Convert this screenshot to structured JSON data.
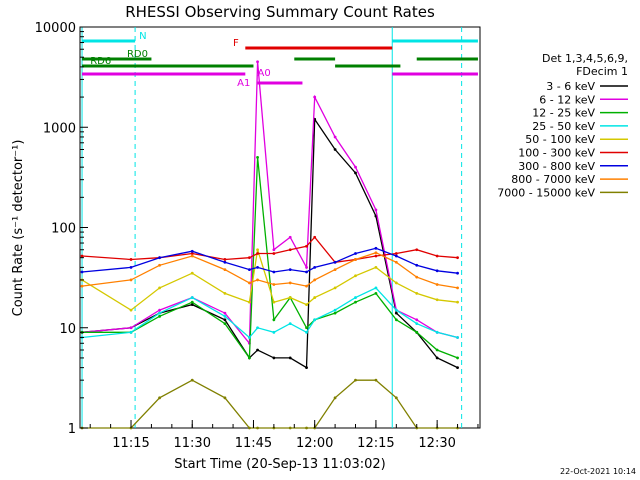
{
  "chart_data": {
    "type": "line",
    "title": "RHESSI Observing Summary Count Rates",
    "xlabel": "Start Time (20-Sep-13 11:03:02)",
    "ylabel": "Count Rate (s⁻¹ detector⁻¹)",
    "yscale": "log",
    "ylim": [
      1,
      10000
    ],
    "xlim_minutes": [
      11.05,
      12.7
    ],
    "x_ticks": [
      "11:15",
      "11:30",
      "11:45",
      "12:00",
      "12:15",
      "12:30"
    ],
    "y_ticks": [
      "1",
      "10",
      "100",
      "1000",
      "10000"
    ],
    "legend_header": [
      "Det 1,3,4,5,6,9,",
      "FDecim 1"
    ],
    "legend_position": "right",
    "timestamp": "22-Oct-2021 10:14",
    "attenuator_labels": {
      "A1": "A1",
      "A0": "A0"
    },
    "mode_bars": [
      {
        "label": "N",
        "color": "#00e5e5"
      },
      {
        "label": "F",
        "color": "#e00000"
      },
      {
        "label": "RD0",
        "color": "#008000"
      },
      {
        "label": "RD6",
        "color": "#008000"
      },
      {
        "label": "",
        "color": "#e000e0"
      }
    ],
    "series": [
      {
        "name": "3 - 6 keV",
        "color": "#000000",
        "x": [
          "11:03",
          "11:15",
          "11:22",
          "11:30",
          "11:38",
          "11:44",
          "11:46",
          "11:50",
          "11:54",
          "11:58",
          "12:00",
          "12:05",
          "12:10",
          "12:15",
          "12:20",
          "12:25",
          "12:30",
          "12:35"
        ],
        "values": [
          9,
          10,
          14,
          17,
          12,
          5,
          6,
          5,
          5,
          4,
          1200,
          600,
          350,
          130,
          14,
          9,
          5,
          4
        ]
      },
      {
        "name": "6 - 12 keV",
        "color": "#e000e0",
        "x": [
          "11:03",
          "11:15",
          "11:22",
          "11:30",
          "11:38",
          "11:44",
          "11:46",
          "11:50",
          "11:54",
          "11:58",
          "12:00",
          "12:05",
          "12:10",
          "12:15",
          "12:20",
          "12:25",
          "12:30",
          "12:35"
        ],
        "values": [
          9,
          10,
          15,
          20,
          14,
          7,
          4500,
          60,
          80,
          40,
          2000,
          800,
          400,
          150,
          15,
          12,
          9,
          8
        ]
      },
      {
        "name": "12 - 25 keV",
        "color": "#00b000",
        "x": [
          "11:03",
          "11:15",
          "11:22",
          "11:30",
          "11:38",
          "11:44",
          "11:46",
          "11:50",
          "11:54",
          "11:58",
          "12:00",
          "12:05",
          "12:10",
          "12:15",
          "12:20",
          "12:25",
          "12:30",
          "12:35"
        ],
        "values": [
          9,
          9,
          13,
          18,
          11,
          5,
          500,
          12,
          20,
          10,
          12,
          14,
          18,
          22,
          12,
          9,
          6,
          5
        ]
      },
      {
        "name": "25 - 50 keV",
        "color": "#00e5e5",
        "x": [
          "11:03",
          "11:15",
          "11:22",
          "11:30",
          "11:38",
          "11:44",
          "11:46",
          "11:50",
          "11:54",
          "11:58",
          "12:00",
          "12:05",
          "12:10",
          "12:15",
          "12:20",
          "12:25",
          "12:30",
          "12:35"
        ],
        "values": [
          8,
          9,
          14,
          20,
          13,
          8,
          10,
          9,
          11,
          9,
          12,
          15,
          20,
          25,
          15,
          11,
          9,
          8
        ]
      },
      {
        "name": "50 - 100 keV",
        "color": "#d4c800",
        "x": [
          "11:03",
          "11:15",
          "11:22",
          "11:30",
          "11:38",
          "11:44",
          "11:46",
          "11:50",
          "11:54",
          "11:58",
          "12:00",
          "12:05",
          "12:10",
          "12:15",
          "12:20",
          "12:25",
          "12:30",
          "12:35"
        ],
        "values": [
          30,
          15,
          25,
          35,
          22,
          18,
          60,
          18,
          20,
          17,
          20,
          25,
          33,
          40,
          28,
          22,
          19,
          18
        ]
      },
      {
        "name": "100 - 300 keV",
        "color": "#e00000",
        "x": [
          "11:03",
          "11:15",
          "11:22",
          "11:30",
          "11:38",
          "11:44",
          "11:46",
          "11:50",
          "11:54",
          "11:58",
          "12:00",
          "12:05",
          "12:10",
          "12:15",
          "12:20",
          "12:25",
          "12:30",
          "12:35"
        ],
        "values": [
          52,
          48,
          50,
          55,
          48,
          50,
          55,
          55,
          60,
          65,
          80,
          45,
          48,
          52,
          55,
          60,
          52,
          50
        ]
      },
      {
        "name": "300 - 800 keV",
        "color": "#0000e0",
        "x": [
          "11:03",
          "11:15",
          "11:22",
          "11:30",
          "11:38",
          "11:44",
          "11:46",
          "11:50",
          "11:54",
          "11:58",
          "12:00",
          "12:05",
          "12:10",
          "12:15",
          "12:20",
          "12:25",
          "12:30",
          "12:35"
        ],
        "values": [
          36,
          40,
          50,
          58,
          45,
          38,
          40,
          36,
          38,
          36,
          40,
          45,
          55,
          62,
          52,
          42,
          37,
          35
        ]
      },
      {
        "name": "800 - 7000 keV",
        "color": "#ff8000",
        "x": [
          "11:03",
          "11:15",
          "11:22",
          "11:30",
          "11:38",
          "11:44",
          "11:46",
          "11:50",
          "11:54",
          "11:58",
          "12:00",
          "12:05",
          "12:10",
          "12:15",
          "12:20",
          "12:25",
          "12:30",
          "12:35"
        ],
        "values": [
          26,
          30,
          42,
          52,
          38,
          28,
          30,
          27,
          28,
          26,
          30,
          38,
          48,
          56,
          45,
          32,
          27,
          25
        ]
      },
      {
        "name": "7000 - 15000 keV",
        "color": "#808000",
        "x": [
          "11:03",
          "11:15",
          "11:22",
          "11:30",
          "11:38",
          "11:44",
          "11:46",
          "11:50",
          "11:54",
          "11:58",
          "12:00",
          "12:05",
          "12:10",
          "12:15",
          "12:20",
          "12:25",
          "12:30",
          "12:35"
        ],
        "values": [
          1,
          1,
          2,
          3,
          2,
          1,
          1,
          1,
          1,
          1,
          1,
          2,
          3,
          3,
          2,
          1,
          1,
          1
        ]
      }
    ]
  }
}
